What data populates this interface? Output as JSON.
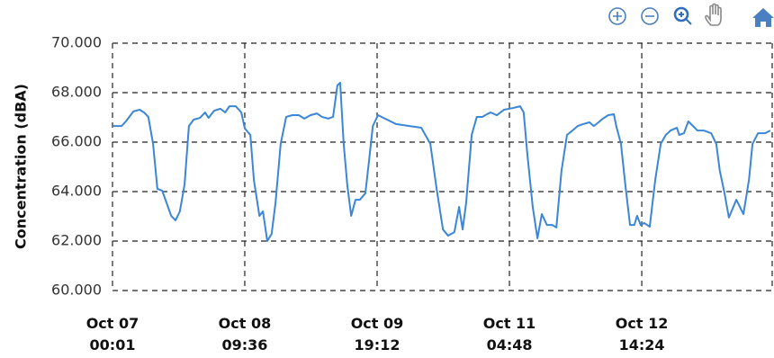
{
  "chart_data": {
    "type": "line",
    "y_label": "Concentration (dBA)",
    "xlim": [
      0,
      167.5
    ],
    "xticks": [
      {
        "value": 0,
        "label": "Oct 07\n00:01"
      },
      {
        "value": 33.583,
        "label": "Oct 08\n09:36"
      },
      {
        "value": 67.183,
        "label": "Oct 09\n19:12"
      },
      {
        "value": 100.783,
        "label": "Oct 11\n04:48"
      },
      {
        "value": 134.383,
        "label": "Oct 12\n14:24"
      }
    ],
    "ylim": [
      60,
      70
    ],
    "yticks": [
      {
        "value": 60,
        "label": "60.000"
      },
      {
        "value": 62,
        "label": "62.000"
      },
      {
        "value": 64,
        "label": "64.000"
      },
      {
        "value": 66,
        "label": "66.000"
      },
      {
        "value": 68,
        "label": "68.000"
      },
      {
        "value": 70,
        "label": "70.000"
      }
    ],
    "grid": true,
    "x": [
      0,
      2.3,
      3.4,
      5.3,
      6.9,
      8.0,
      9.1,
      10.3,
      11.4,
      12.6,
      13.7,
      14.9,
      16.0,
      17.1,
      18.3,
      19.4,
      20.6,
      22.2,
      23.5,
      24.4,
      25.8,
      27.4,
      28.6,
      29.7,
      31.3,
      32.7,
      33.6,
      35.0,
      35.9,
      37.3,
      38.2,
      39.3,
      40.4,
      41.4,
      42.7,
      44.1,
      45.7,
      47.3,
      48.7,
      50.3,
      51.9,
      53.2,
      54.8,
      56.0,
      57.1,
      57.8,
      58.7,
      59.6,
      60.6,
      61.7,
      62.8,
      64.2,
      65.1,
      66.1,
      67.4,
      69.2,
      72.0,
      75.4,
      78.4,
      80.7,
      82.3,
      83.9,
      85.2,
      86.8,
      88.0,
      88.9,
      89.8,
      91.2,
      92.5,
      93.9,
      95.1,
      96.0,
      97.6,
      99.4,
      101.7,
      103.5,
      104.4,
      105.3,
      106.7,
      107.9,
      109.0,
      110.3,
      111.7,
      112.7,
      114.0,
      115.4,
      116.8,
      118.1,
      119.5,
      121.1,
      122.2,
      123.4,
      124.5,
      125.9,
      127.3,
      127.9,
      129.1,
      130.2,
      131.4,
      132.5,
      133.2,
      134.1,
      135.0,
      136.4,
      137.8,
      139.2,
      140.5,
      141.7,
      143.3,
      143.9,
      145.1,
      146.2,
      147.4,
      148.5,
      150.1,
      152.0,
      153.3,
      154.2,
      155.4,
      156.5,
      158.4,
      159.3,
      160.2,
      161.6,
      162.5,
      163.9,
      165.7,
      167.0
    ],
    "series": [
      {
        "color": "#3b86d6",
        "values": [
          66.65,
          66.65,
          66.84,
          67.24,
          67.31,
          67.2,
          67.02,
          65.93,
          64.11,
          64.04,
          63.56,
          63.02,
          62.84,
          63.2,
          64.29,
          66.65,
          66.91,
          66.98,
          67.2,
          66.98,
          67.27,
          67.35,
          67.2,
          67.45,
          67.45,
          67.2,
          66.55,
          66.29,
          64.47,
          63.02,
          63.2,
          62.0,
          62.29,
          63.56,
          65.93,
          67.02,
          67.09,
          67.09,
          66.95,
          67.09,
          67.16,
          67.02,
          66.95,
          67.02,
          68.29,
          68.4,
          65.93,
          64.29,
          63.02,
          63.67,
          63.67,
          63.93,
          65.2,
          66.65,
          67.09,
          66.95,
          66.73,
          66.65,
          66.58,
          65.93,
          64.11,
          62.47,
          62.22,
          62.36,
          63.38,
          62.47,
          63.56,
          66.29,
          67.02,
          67.02,
          67.13,
          67.2,
          67.09,
          67.31,
          67.38,
          67.45,
          67.2,
          65.56,
          63.38,
          62.11,
          63.09,
          62.65,
          62.65,
          62.55,
          64.84,
          66.29,
          66.47,
          66.65,
          66.73,
          66.8,
          66.65,
          66.8,
          66.95,
          67.09,
          67.13,
          66.65,
          65.93,
          64.29,
          62.65,
          62.65,
          63.02,
          62.65,
          62.73,
          62.58,
          64.47,
          65.93,
          66.29,
          66.47,
          66.58,
          66.29,
          66.36,
          66.84,
          66.65,
          66.47,
          66.47,
          66.36,
          65.93,
          64.84,
          63.93,
          62.95,
          63.67,
          63.38,
          63.09,
          64.47,
          65.93,
          66.36,
          66.36,
          66.47
        ]
      }
    ]
  }
}
